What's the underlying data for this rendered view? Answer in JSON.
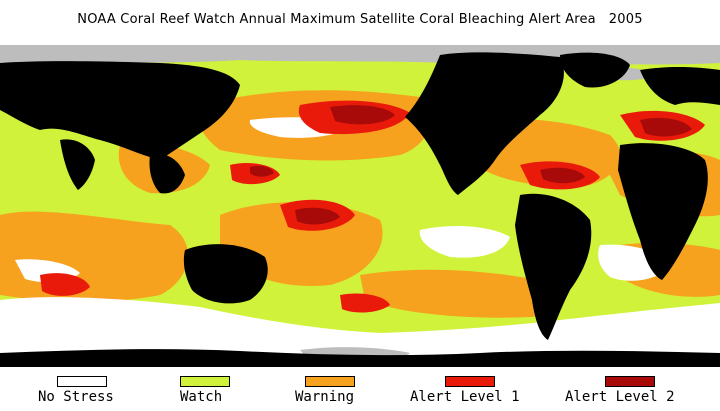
{
  "title": "NOAA Coral Reef Watch Annual Maximum Satellite Coral Bleaching Alert Area   2005",
  "colors": {
    "no_stress": "#ffffff",
    "watch": "#d0f23a",
    "warning": "#f6a21e",
    "alert1": "#ea1a0a",
    "alert2": "#a80a0a",
    "land": "#000000",
    "ice": "#bdbdbd"
  },
  "legend": [
    {
      "label": "No Stress",
      "color": "#ffffff"
    },
    {
      "label": "Watch",
      "color": "#d0f23a"
    },
    {
      "label": "Warning",
      "color": "#f6a21e"
    },
    {
      "label": "Alert Level 1",
      "color": "#ea1a0a"
    },
    {
      "label": "Alert Level 2",
      "color": "#a80a0a"
    }
  ]
}
